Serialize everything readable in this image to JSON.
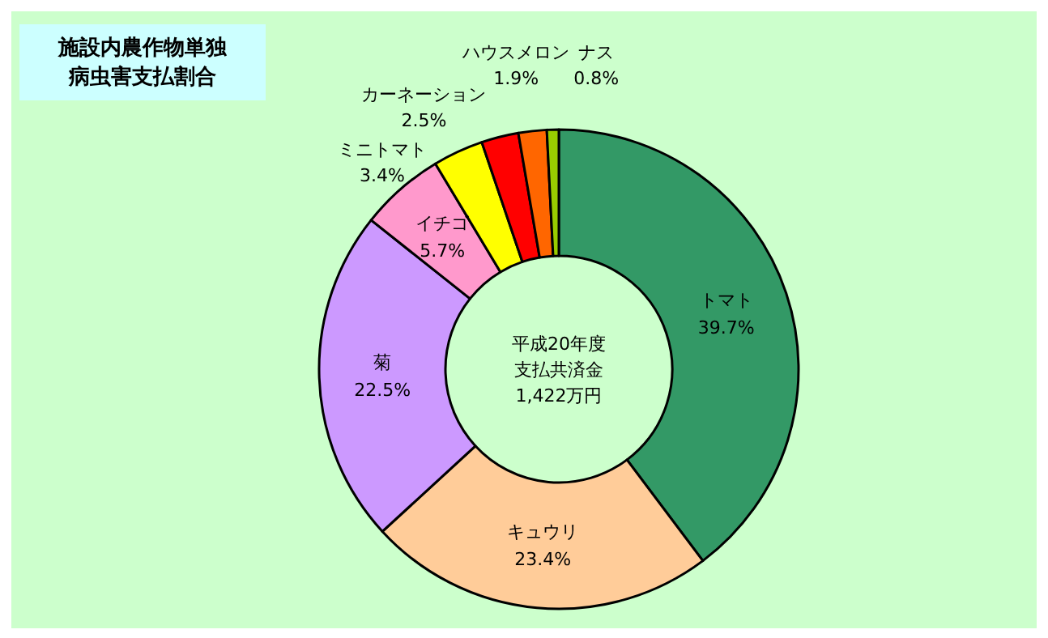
{
  "chart_data": {
    "type": "donut",
    "title": "施設内農作物単独病虫害支払割合",
    "categories": [
      "トマト",
      "キュウリ",
      "菊",
      "イチゴ",
      "ミニトマト",
      "カーネーション",
      "ハウスメロン",
      "ナス"
    ],
    "values": [
      39.7,
      23.4,
      22.5,
      5.7,
      3.4,
      2.5,
      1.9,
      0.8
    ],
    "value_labels": [
      "39.7%",
      "23.4%",
      "22.5%",
      "5.7%",
      "3.4%",
      "2.5%",
      "1.9%",
      "0.8%"
    ],
    "colors": [
      "#339966",
      "#ffcc99",
      "#cc99ff",
      "#ff99cc",
      "#ffff00",
      "#ff0000",
      "#ff6600",
      "#99cc00"
    ],
    "legend": false,
    "annotations": [
      "平成20年度支払共済金1,422万円"
    ]
  }
}
